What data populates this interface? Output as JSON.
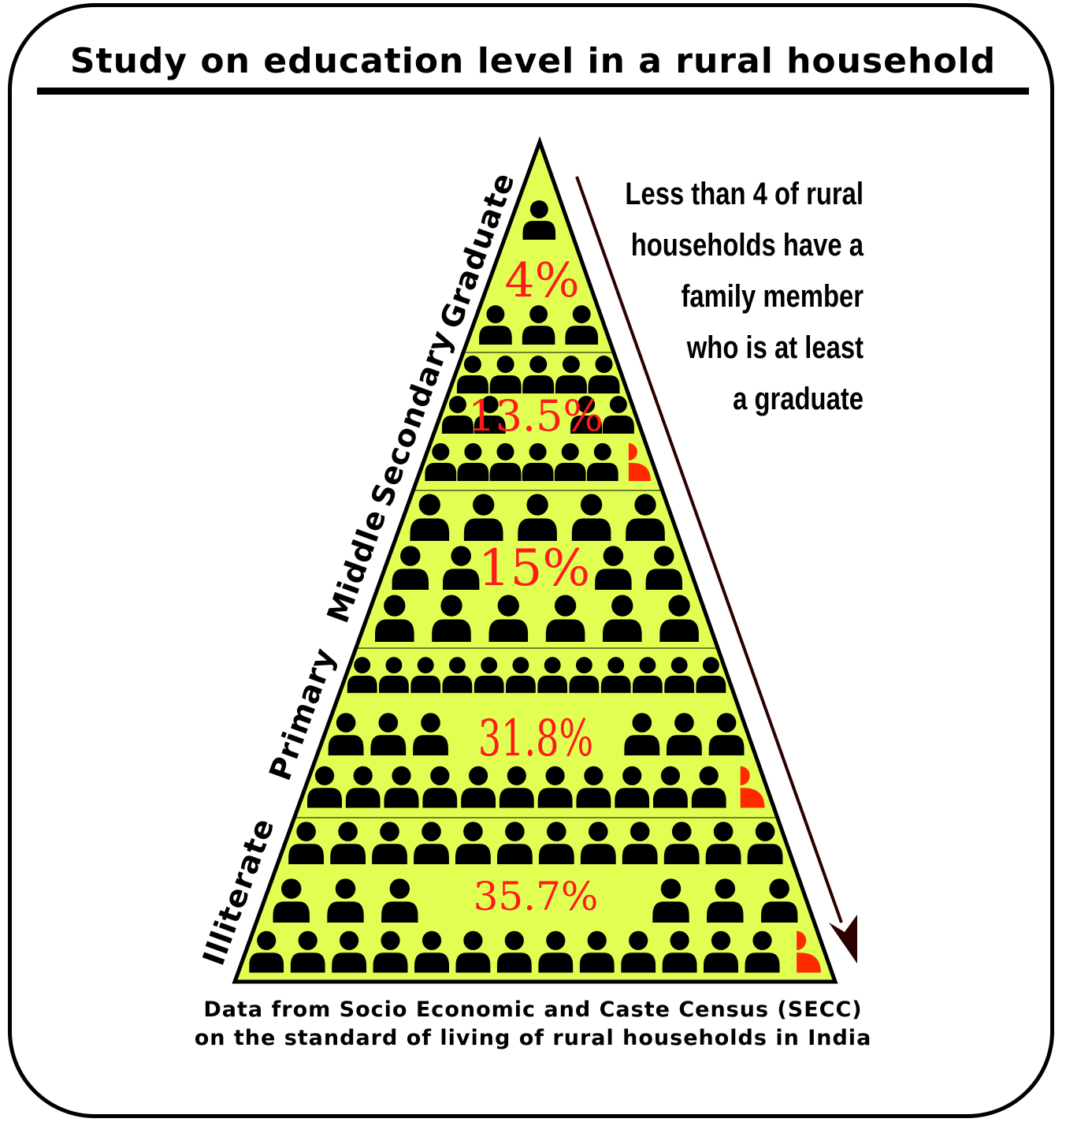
{
  "title": "Study on education level in a rural household",
  "callout": {
    "lines": [
      "Less than 4 of rural",
      "households have a",
      "family member",
      "who is at least",
      "a graduate"
    ]
  },
  "footnote": {
    "lines": [
      "Data from Socio Economic and Caste Census (SECC)",
      "on the standard of living of rural households in India"
    ]
  },
  "colors": {
    "pyramid_fill": "#e1ff52",
    "percent_text": "#ff1a1a",
    "arrow": "#2a0000",
    "partial_person": "#ff2a00"
  },
  "icons": [
    "person-icon",
    "partial-person-icon",
    "arrow-down-icon"
  ],
  "chart_data": {
    "type": "pyramid",
    "unit": "%",
    "levels": [
      {
        "name": "Graduate",
        "label": "4%",
        "value": 4
      },
      {
        "name": "Secondary",
        "label": "13.5%",
        "value": 13.5
      },
      {
        "name": "Middle",
        "label": "15%",
        "value": 15
      },
      {
        "name": "Primary",
        "label": "31.8%",
        "value": 31.8
      },
      {
        "name": "Illiterate",
        "label": "35.7%",
        "value": 35.7
      }
    ]
  }
}
